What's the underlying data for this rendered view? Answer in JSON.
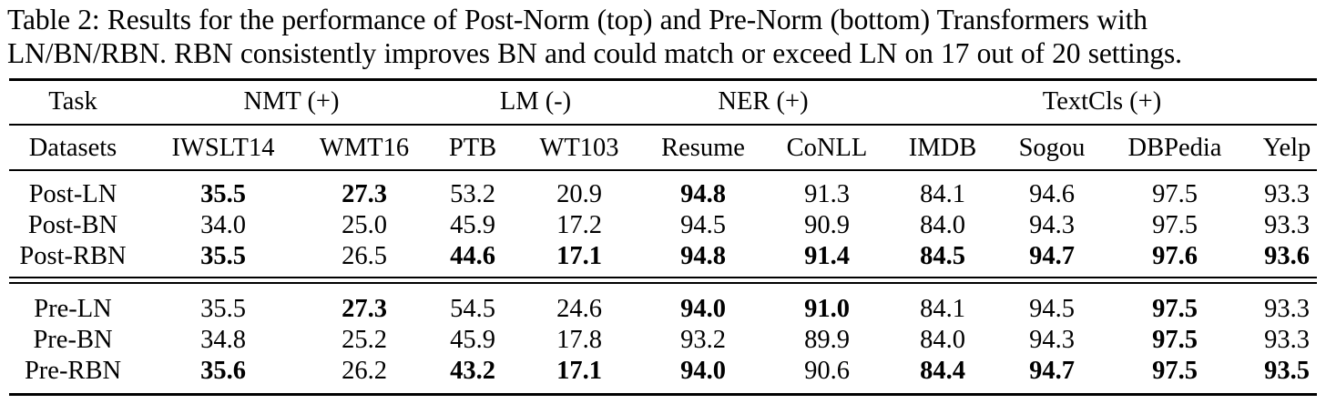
{
  "caption": {
    "line1": "Table 2: Results for the performance of Post-Norm (top) and Pre-Norm (bottom) Transformers with",
    "line2": "LN/BN/RBN. RBN consistently improves BN and could match or exceed LN on 17 out of 20 settings."
  },
  "header": {
    "task_label": "Task",
    "groups": [
      "NMT (+)",
      "LM (-)",
      "NER (+)",
      "TextCls (+)"
    ],
    "datasets_label": "Datasets",
    "datasets": [
      "IWSLT14",
      "WMT16",
      "PTB",
      "WT103",
      "Resume",
      "CoNLL",
      "IMDB",
      "Sogou",
      "DBPedia",
      "Yelp"
    ]
  },
  "rows": [
    {
      "name": "Post-LN",
      "values": [
        "35.5",
        "27.3",
        "53.2",
        "20.9",
        "94.8",
        "91.3",
        "84.1",
        "94.6",
        "97.5",
        "93.3"
      ],
      "bold": [
        true,
        true,
        false,
        false,
        true,
        false,
        false,
        false,
        false,
        false
      ]
    },
    {
      "name": "Post-BN",
      "values": [
        "34.0",
        "25.0",
        "45.9",
        "17.2",
        "94.5",
        "90.9",
        "84.0",
        "94.3",
        "97.5",
        "93.3"
      ],
      "bold": [
        false,
        false,
        false,
        false,
        false,
        false,
        false,
        false,
        false,
        false
      ]
    },
    {
      "name": "Post-RBN",
      "values": [
        "35.5",
        "26.5",
        "44.6",
        "17.1",
        "94.8",
        "91.4",
        "84.5",
        "94.7",
        "97.6",
        "93.6"
      ],
      "bold": [
        true,
        false,
        true,
        true,
        true,
        true,
        true,
        true,
        true,
        true
      ]
    },
    {
      "name": "Pre-LN",
      "values": [
        "35.5",
        "27.3",
        "54.5",
        "24.6",
        "94.0",
        "91.0",
        "84.1",
        "94.5",
        "97.5",
        "93.3"
      ],
      "bold": [
        false,
        true,
        false,
        false,
        true,
        true,
        false,
        false,
        true,
        false
      ]
    },
    {
      "name": "Pre-BN",
      "values": [
        "34.8",
        "25.2",
        "45.9",
        "17.8",
        "93.2",
        "89.9",
        "84.0",
        "94.3",
        "97.5",
        "93.3"
      ],
      "bold": [
        false,
        false,
        false,
        false,
        false,
        false,
        false,
        false,
        true,
        false
      ]
    },
    {
      "name": "Pre-RBN",
      "values": [
        "35.6",
        "26.2",
        "43.2",
        "17.1",
        "94.0",
        "90.6",
        "84.4",
        "94.7",
        "97.5",
        "93.5"
      ],
      "bold": [
        true,
        false,
        true,
        true,
        true,
        false,
        true,
        true,
        true,
        true
      ]
    }
  ]
}
